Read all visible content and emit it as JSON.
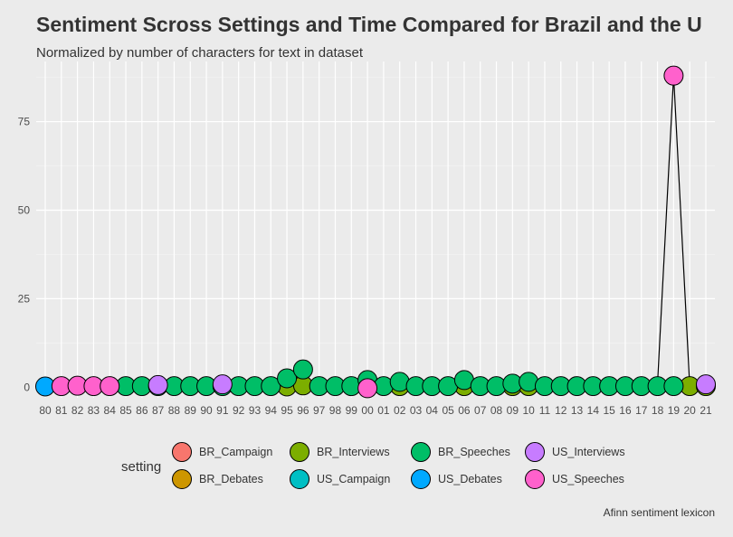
{
  "chart_data": {
    "type": "scatter",
    "title": "Sentiment Scross Settings and Time Compared for Brazil and the U",
    "subtitle": "Normalized by number of characters for text in dataset",
    "caption": "Afinn sentiment lexicon",
    "ylim": [
      -3,
      92
    ],
    "yticks": [
      0,
      25,
      50,
      75
    ],
    "grid": true,
    "legend_title": "setting",
    "legend_position": "bottom",
    "categories": [
      "80",
      "81",
      "82",
      "83",
      "84",
      "85",
      "86",
      "87",
      "88",
      "89",
      "90",
      "91",
      "92",
      "93",
      "94",
      "95",
      "96",
      "97",
      "98",
      "99",
      "00",
      "01",
      "02",
      "03",
      "04",
      "05",
      "06",
      "07",
      "08",
      "09",
      "10",
      "11",
      "12",
      "13",
      "14",
      "15",
      "16",
      "17",
      "18",
      "19",
      "20",
      "21"
    ],
    "series": [
      {
        "name": "BR_Campaign",
        "color": "#F8766D",
        "values": [
          null,
          null,
          null,
          null,
          null,
          null,
          null,
          null,
          null,
          null,
          null,
          null,
          null,
          null,
          null,
          null,
          null,
          null,
          null,
          null,
          null,
          null,
          null,
          null,
          null,
          null,
          null,
          null,
          null,
          null,
          null,
          null,
          null,
          null,
          null,
          null,
          null,
          null,
          null,
          null,
          null,
          null
        ]
      },
      {
        "name": "BR_Debates",
        "color": "#CD9600",
        "values": [
          null,
          null,
          null,
          null,
          null,
          null,
          null,
          null,
          null,
          null,
          null,
          null,
          null,
          null,
          null,
          null,
          null,
          null,
          null,
          null,
          null,
          null,
          null,
          null,
          null,
          null,
          null,
          null,
          null,
          null,
          null,
          null,
          null,
          null,
          null,
          null,
          null,
          null,
          null,
          null,
          null,
          null
        ]
      },
      {
        "name": "BR_Interviews",
        "color": "#7CAE00",
        "values": [
          null,
          null,
          null,
          null,
          null,
          null,
          null,
          null,
          null,
          null,
          null,
          null,
          null,
          null,
          null,
          0.2,
          0.5,
          null,
          null,
          null,
          null,
          null,
          0.3,
          null,
          null,
          null,
          0.3,
          null,
          null,
          0.3,
          0.3,
          null,
          null,
          null,
          null,
          null,
          null,
          null,
          null,
          null,
          0.3,
          0.3
        ]
      },
      {
        "name": "US_Campaign",
        "color": "#00BFC4",
        "values": [
          null,
          null,
          null,
          null,
          null,
          null,
          null,
          null,
          null,
          null,
          null,
          null,
          null,
          null,
          null,
          null,
          null,
          null,
          null,
          null,
          null,
          null,
          null,
          null,
          null,
          null,
          null,
          null,
          null,
          null,
          null,
          null,
          null,
          null,
          null,
          null,
          null,
          null,
          null,
          null,
          null,
          null
        ]
      },
      {
        "name": "BR_Speeches",
        "color": "#00BE67",
        "values": [
          null,
          null,
          null,
          null,
          null,
          0.3,
          0.3,
          0.3,
          0.3,
          0.3,
          0.3,
          0.3,
          0.3,
          0.3,
          0.3,
          2.5,
          5.0,
          0.3,
          0.3,
          0.3,
          2.0,
          0.3,
          1.5,
          0.3,
          0.3,
          0.3,
          2.0,
          0.3,
          0.3,
          1.0,
          1.5,
          0.3,
          0.3,
          0.3,
          0.3,
          0.3,
          0.3,
          0.3,
          0.3,
          0.3,
          null,
          null
        ]
      },
      {
        "name": "US_Debates",
        "color": "#00A9FF",
        "values": [
          0.2,
          null,
          null,
          null,
          null,
          null,
          null,
          null,
          null,
          null,
          null,
          null,
          null,
          null,
          null,
          null,
          null,
          null,
          null,
          null,
          null,
          null,
          null,
          null,
          null,
          null,
          null,
          null,
          null,
          null,
          null,
          null,
          null,
          null,
          null,
          null,
          null,
          null,
          null,
          null,
          null,
          null
        ]
      },
      {
        "name": "US_Interviews",
        "color": "#C77CFF",
        "values": [
          null,
          null,
          null,
          null,
          null,
          null,
          null,
          0.6,
          null,
          null,
          null,
          0.8,
          null,
          null,
          null,
          null,
          null,
          null,
          null,
          null,
          null,
          null,
          null,
          null,
          null,
          null,
          null,
          null,
          null,
          null,
          null,
          null,
          null,
          null,
          null,
          null,
          null,
          null,
          null,
          null,
          null,
          0.8
        ]
      },
      {
        "name": "US_Speeches",
        "color": "#FF61CC",
        "values": [
          null,
          0.3,
          0.4,
          0.3,
          0.3,
          null,
          null,
          null,
          null,
          null,
          null,
          null,
          null,
          null,
          null,
          null,
          null,
          null,
          null,
          null,
          -0.3,
          null,
          null,
          null,
          null,
          null,
          null,
          null,
          null,
          null,
          null,
          null,
          null,
          null,
          null,
          null,
          null,
          null,
          null,
          88,
          null,
          null
        ]
      }
    ],
    "line": {
      "color": "#000000",
      "values": [
        0.2,
        0.3,
        0.4,
        0.3,
        0.3,
        0.3,
        0.3,
        0.6,
        0.3,
        0.3,
        0.3,
        0.8,
        0.3,
        0.3,
        0.3,
        0.2,
        0.5,
        0.3,
        0.3,
        0.3,
        -0.3,
        0.3,
        0.3,
        0.3,
        0.3,
        0.3,
        0.3,
        0.3,
        0.3,
        0.3,
        0.3,
        0.3,
        0.3,
        0.3,
        0.3,
        0.3,
        0.3,
        0.3,
        1.0,
        88,
        0.3,
        0.8
      ]
    }
  }
}
